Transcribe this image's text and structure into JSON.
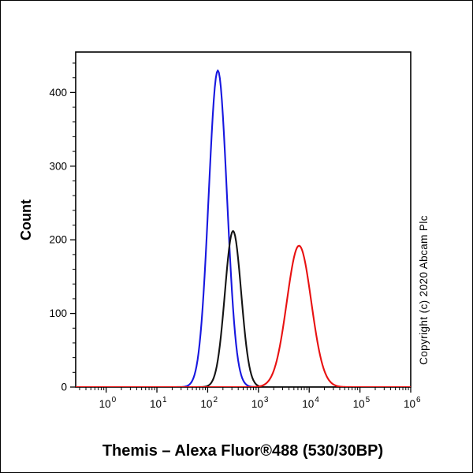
{
  "page": {
    "background": "#ffffff",
    "frame_border": "#000000"
  },
  "copyright": "Copyright (c) 2020 Abcam Plc",
  "chart_data": {
    "type": "line",
    "title": "Themis – Alexa Fluor®488 (530/30BP)",
    "xlabel": "",
    "ylabel": "Count",
    "x_scale": "log10",
    "x_log_range": [
      -0.6,
      6.0
    ],
    "x_major_tick_exponents": [
      0,
      1,
      2,
      3,
      4,
      5,
      6
    ],
    "ylim": [
      0,
      455
    ],
    "y_major_ticks": [
      0,
      100,
      200,
      300,
      400
    ],
    "y_minor_step": 20,
    "grid": false,
    "legend": "none",
    "series": [
      {
        "name": "blue-curve",
        "color": "#1717e0",
        "peak_log10_x": 2.2,
        "peak_x_value": 160,
        "peak_count": 430,
        "sigma_log10": 0.18
      },
      {
        "name": "black-curve",
        "color": "#141414",
        "peak_log10_x": 2.5,
        "peak_x_value": 320,
        "peak_count": 212,
        "sigma_log10": 0.16
      },
      {
        "name": "red-curve",
        "color": "#e81111",
        "peak_log10_x": 3.8,
        "peak_x_value": 6300,
        "peak_count": 192,
        "sigma_log10": 0.24
      }
    ]
  }
}
